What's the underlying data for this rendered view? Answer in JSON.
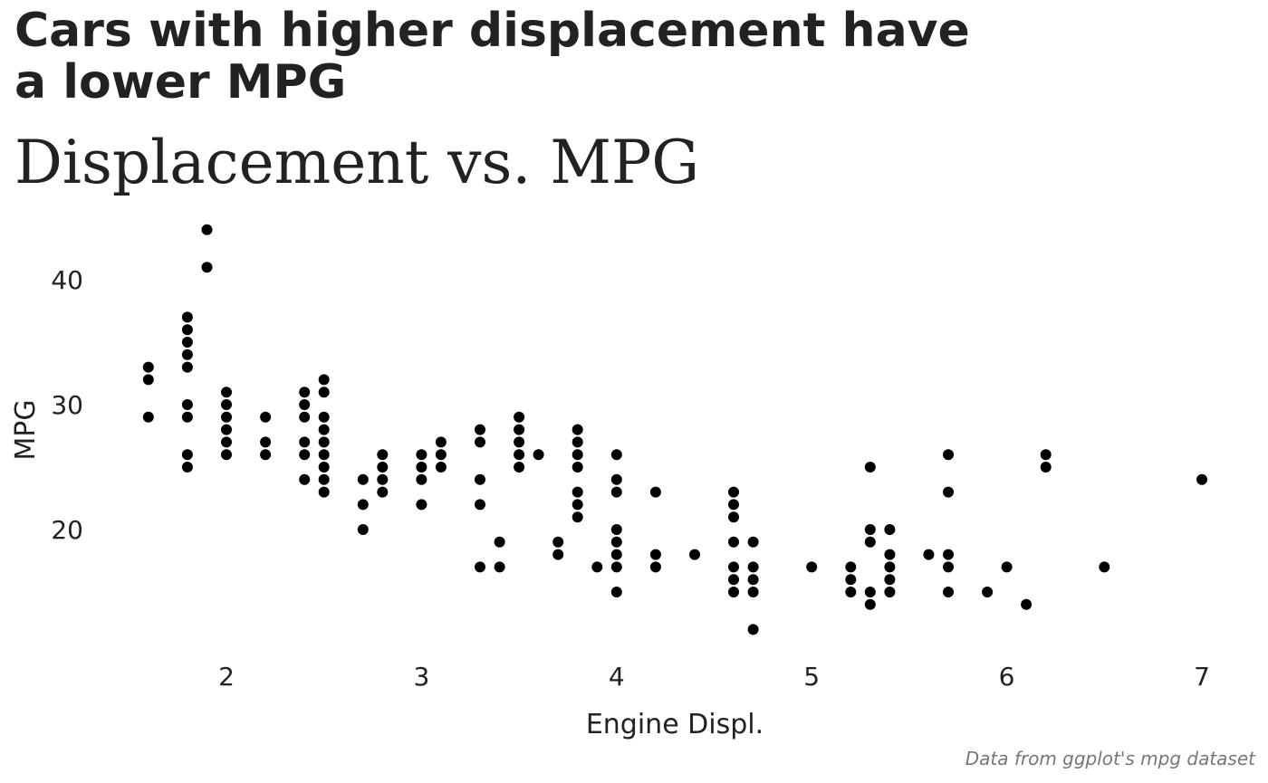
{
  "chart_data": {
    "type": "scatter",
    "title": "Cars with higher displacement have a lower MPG",
    "subtitle": "Displacement vs. MPG",
    "caption": "Data from ggplot's mpg dataset",
    "xlabel": "Engine Displ.",
    "ylabel": "MPG",
    "xlim": [
      1.5,
      7.05
    ],
    "ylim": [
      11,
      44.5
    ],
    "x_ticks": [
      2,
      3,
      4,
      5,
      6,
      7
    ],
    "y_ticks": [
      20,
      30,
      40
    ],
    "grid": false,
    "legend": "none",
    "point_color": "#000000",
    "points": [
      [
        1.6,
        33
      ],
      [
        1.6,
        32
      ],
      [
        1.6,
        29
      ],
      [
        1.8,
        37
      ],
      [
        1.8,
        36
      ],
      [
        1.8,
        35
      ],
      [
        1.8,
        34
      ],
      [
        1.8,
        33
      ],
      [
        1.8,
        30
      ],
      [
        1.8,
        29
      ],
      [
        1.8,
        26
      ],
      [
        1.8,
        25
      ],
      [
        1.9,
        44
      ],
      [
        1.9,
        41
      ],
      [
        2.0,
        31
      ],
      [
        2.0,
        30
      ],
      [
        2.0,
        29
      ],
      [
        2.0,
        28
      ],
      [
        2.0,
        27
      ],
      [
        2.0,
        26
      ],
      [
        2.2,
        29
      ],
      [
        2.2,
        27
      ],
      [
        2.2,
        26
      ],
      [
        2.4,
        31
      ],
      [
        2.4,
        30
      ],
      [
        2.4,
        29
      ],
      [
        2.4,
        27
      ],
      [
        2.4,
        26
      ],
      [
        2.4,
        24
      ],
      [
        2.5,
        32
      ],
      [
        2.5,
        31
      ],
      [
        2.5,
        29
      ],
      [
        2.5,
        28
      ],
      [
        2.5,
        27
      ],
      [
        2.5,
        26
      ],
      [
        2.5,
        25
      ],
      [
        2.5,
        24
      ],
      [
        2.5,
        23
      ],
      [
        2.7,
        24
      ],
      [
        2.7,
        22
      ],
      [
        2.7,
        20
      ],
      [
        2.8,
        26
      ],
      [
        2.8,
        25
      ],
      [
        2.8,
        24
      ],
      [
        2.8,
        23
      ],
      [
        3.0,
        26
      ],
      [
        3.0,
        25
      ],
      [
        3.0,
        24
      ],
      [
        3.0,
        22
      ],
      [
        3.1,
        27
      ],
      [
        3.1,
        26
      ],
      [
        3.1,
        25
      ],
      [
        3.3,
        28
      ],
      [
        3.3,
        27
      ],
      [
        3.3,
        24
      ],
      [
        3.3,
        22
      ],
      [
        3.3,
        17
      ],
      [
        3.4,
        19
      ],
      [
        3.4,
        17
      ],
      [
        3.5,
        29
      ],
      [
        3.5,
        28
      ],
      [
        3.5,
        27
      ],
      [
        3.5,
        26
      ],
      [
        3.5,
        25
      ],
      [
        3.6,
        26
      ],
      [
        3.7,
        19
      ],
      [
        3.7,
        18
      ],
      [
        3.8,
        28
      ],
      [
        3.8,
        27
      ],
      [
        3.8,
        26
      ],
      [
        3.8,
        25
      ],
      [
        3.8,
        23
      ],
      [
        3.8,
        22
      ],
      [
        3.8,
        21
      ],
      [
        3.9,
        17
      ],
      [
        4.0,
        26
      ],
      [
        4.0,
        24
      ],
      [
        4.0,
        23
      ],
      [
        4.0,
        20
      ],
      [
        4.0,
        19
      ],
      [
        4.0,
        18
      ],
      [
        4.0,
        17
      ],
      [
        4.0,
        15
      ],
      [
        4.2,
        23
      ],
      [
        4.2,
        18
      ],
      [
        4.2,
        17
      ],
      [
        4.4,
        18
      ],
      [
        4.6,
        23
      ],
      [
        4.6,
        22
      ],
      [
        4.6,
        21
      ],
      [
        4.6,
        19
      ],
      [
        4.6,
        17
      ],
      [
        4.6,
        16
      ],
      [
        4.6,
        15
      ],
      [
        4.7,
        19
      ],
      [
        4.7,
        17
      ],
      [
        4.7,
        16
      ],
      [
        4.7,
        15
      ],
      [
        4.7,
        12
      ],
      [
        5.0,
        17
      ],
      [
        5.2,
        17
      ],
      [
        5.2,
        16
      ],
      [
        5.2,
        15
      ],
      [
        5.3,
        25
      ],
      [
        5.3,
        20
      ],
      [
        5.3,
        19
      ],
      [
        5.3,
        15
      ],
      [
        5.3,
        14
      ],
      [
        5.4,
        20
      ],
      [
        5.4,
        18
      ],
      [
        5.4,
        17
      ],
      [
        5.4,
        16
      ],
      [
        5.4,
        15
      ],
      [
        5.6,
        18
      ],
      [
        5.7,
        26
      ],
      [
        5.7,
        23
      ],
      [
        5.7,
        18
      ],
      [
        5.7,
        17
      ],
      [
        5.7,
        15
      ],
      [
        5.9,
        15
      ],
      [
        6.0,
        17
      ],
      [
        6.1,
        14
      ],
      [
        6.2,
        26
      ],
      [
        6.2,
        25
      ],
      [
        6.5,
        17
      ],
      [
        7.0,
        24
      ]
    ]
  }
}
